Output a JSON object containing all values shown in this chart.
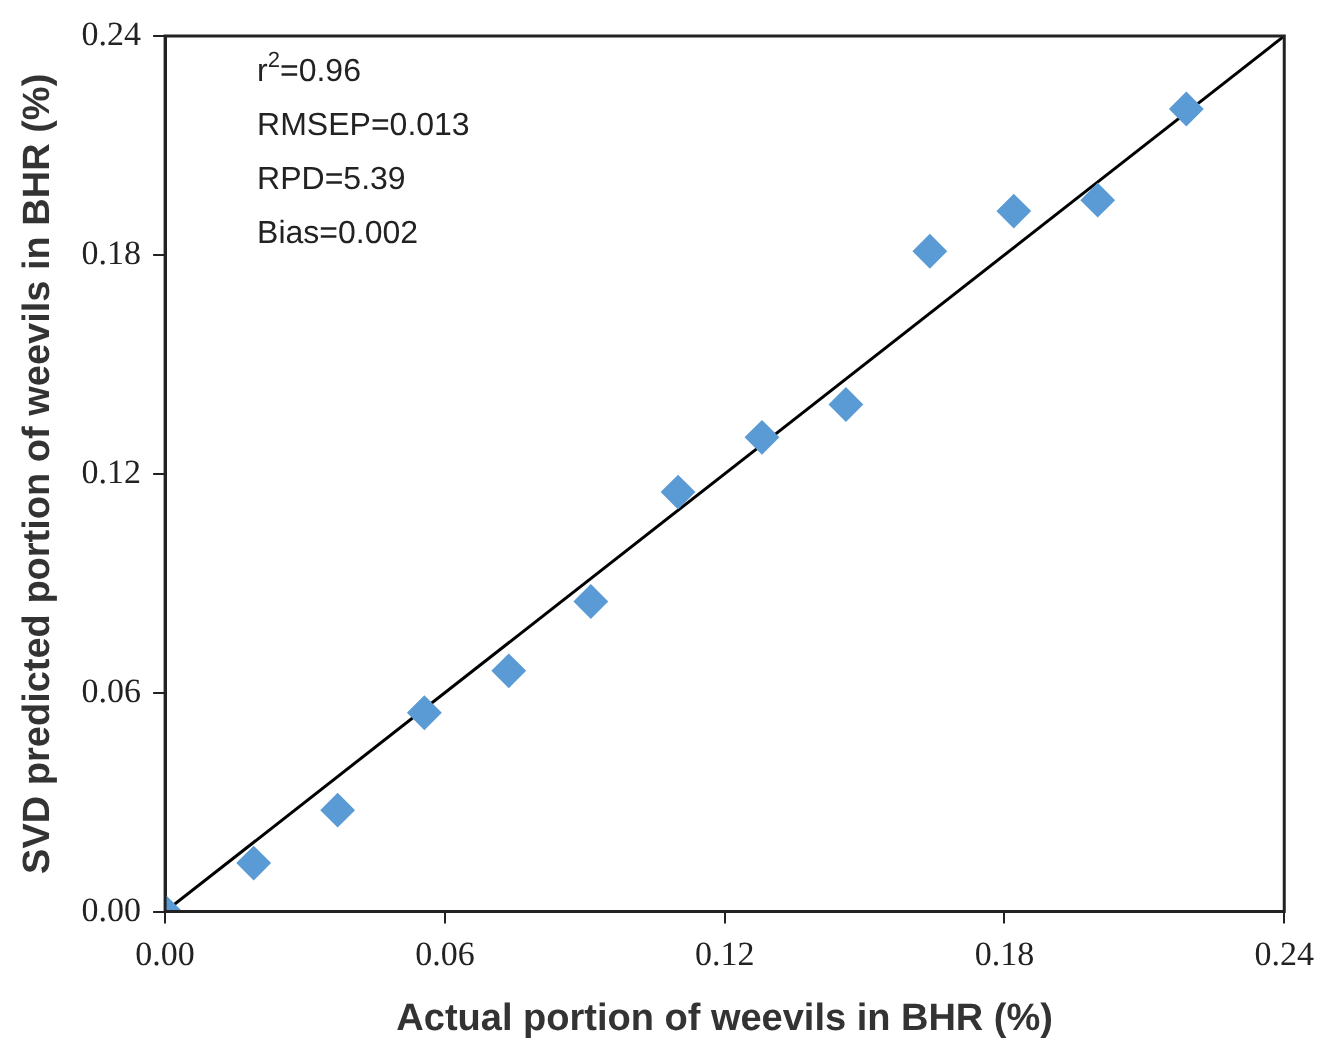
{
  "chart_data": {
    "type": "scatter",
    "xlabel": "Actual portion of weevils in BHR (%)",
    "ylabel": "SVD predicted portion of weevils in BHR (%)",
    "x": [
      0,
      0.019,
      0.037,
      0.0556,
      0.0737,
      0.0913,
      0.11,
      0.128,
      0.146,
      0.164,
      0.182,
      0.2,
      0.219
    ],
    "series": [
      {
        "color": "#5b9bd5",
        "marker": "diamond",
        "values": [
          0,
          0.0133,
          0.0278,
          0.0545,
          0.066,
          0.085,
          0.115,
          0.13,
          0.139,
          0.181,
          0.192,
          0.195,
          0.22
        ]
      },
      {
        "type": "line",
        "color": "#000000",
        "marker": "none",
        "x": [
          0,
          0.24
        ],
        "values": [
          0,
          0.24
        ]
      }
    ],
    "annotations": [
      "r$^{2}$=0.96",
      "RMSEP=0.013",
      "RPD=5.39",
      "Bias=0.002"
    ],
    "xlim": [
      0,
      0.24
    ],
    "ylim": [
      0,
      0.24
    ],
    "xticks": [
      {
        "value": 0,
        "label": "0.00"
      },
      {
        "value": 0.06,
        "label": "0.06"
      },
      {
        "value": 0.12,
        "label": "0.12"
      },
      {
        "value": 0.18,
        "label": "0.18"
      },
      {
        "value": 0.24,
        "label": "0.24"
      }
    ],
    "yticks": [
      {
        "value": 0,
        "label": "0.00"
      },
      {
        "value": 0.06,
        "label": "0.06"
      },
      {
        "value": 0.12,
        "label": "0.12"
      },
      {
        "value": 0.18,
        "label": "0.18"
      },
      {
        "value": 0.24,
        "label": "0.24"
      }
    ],
    "grid": false,
    "legend": false
  }
}
